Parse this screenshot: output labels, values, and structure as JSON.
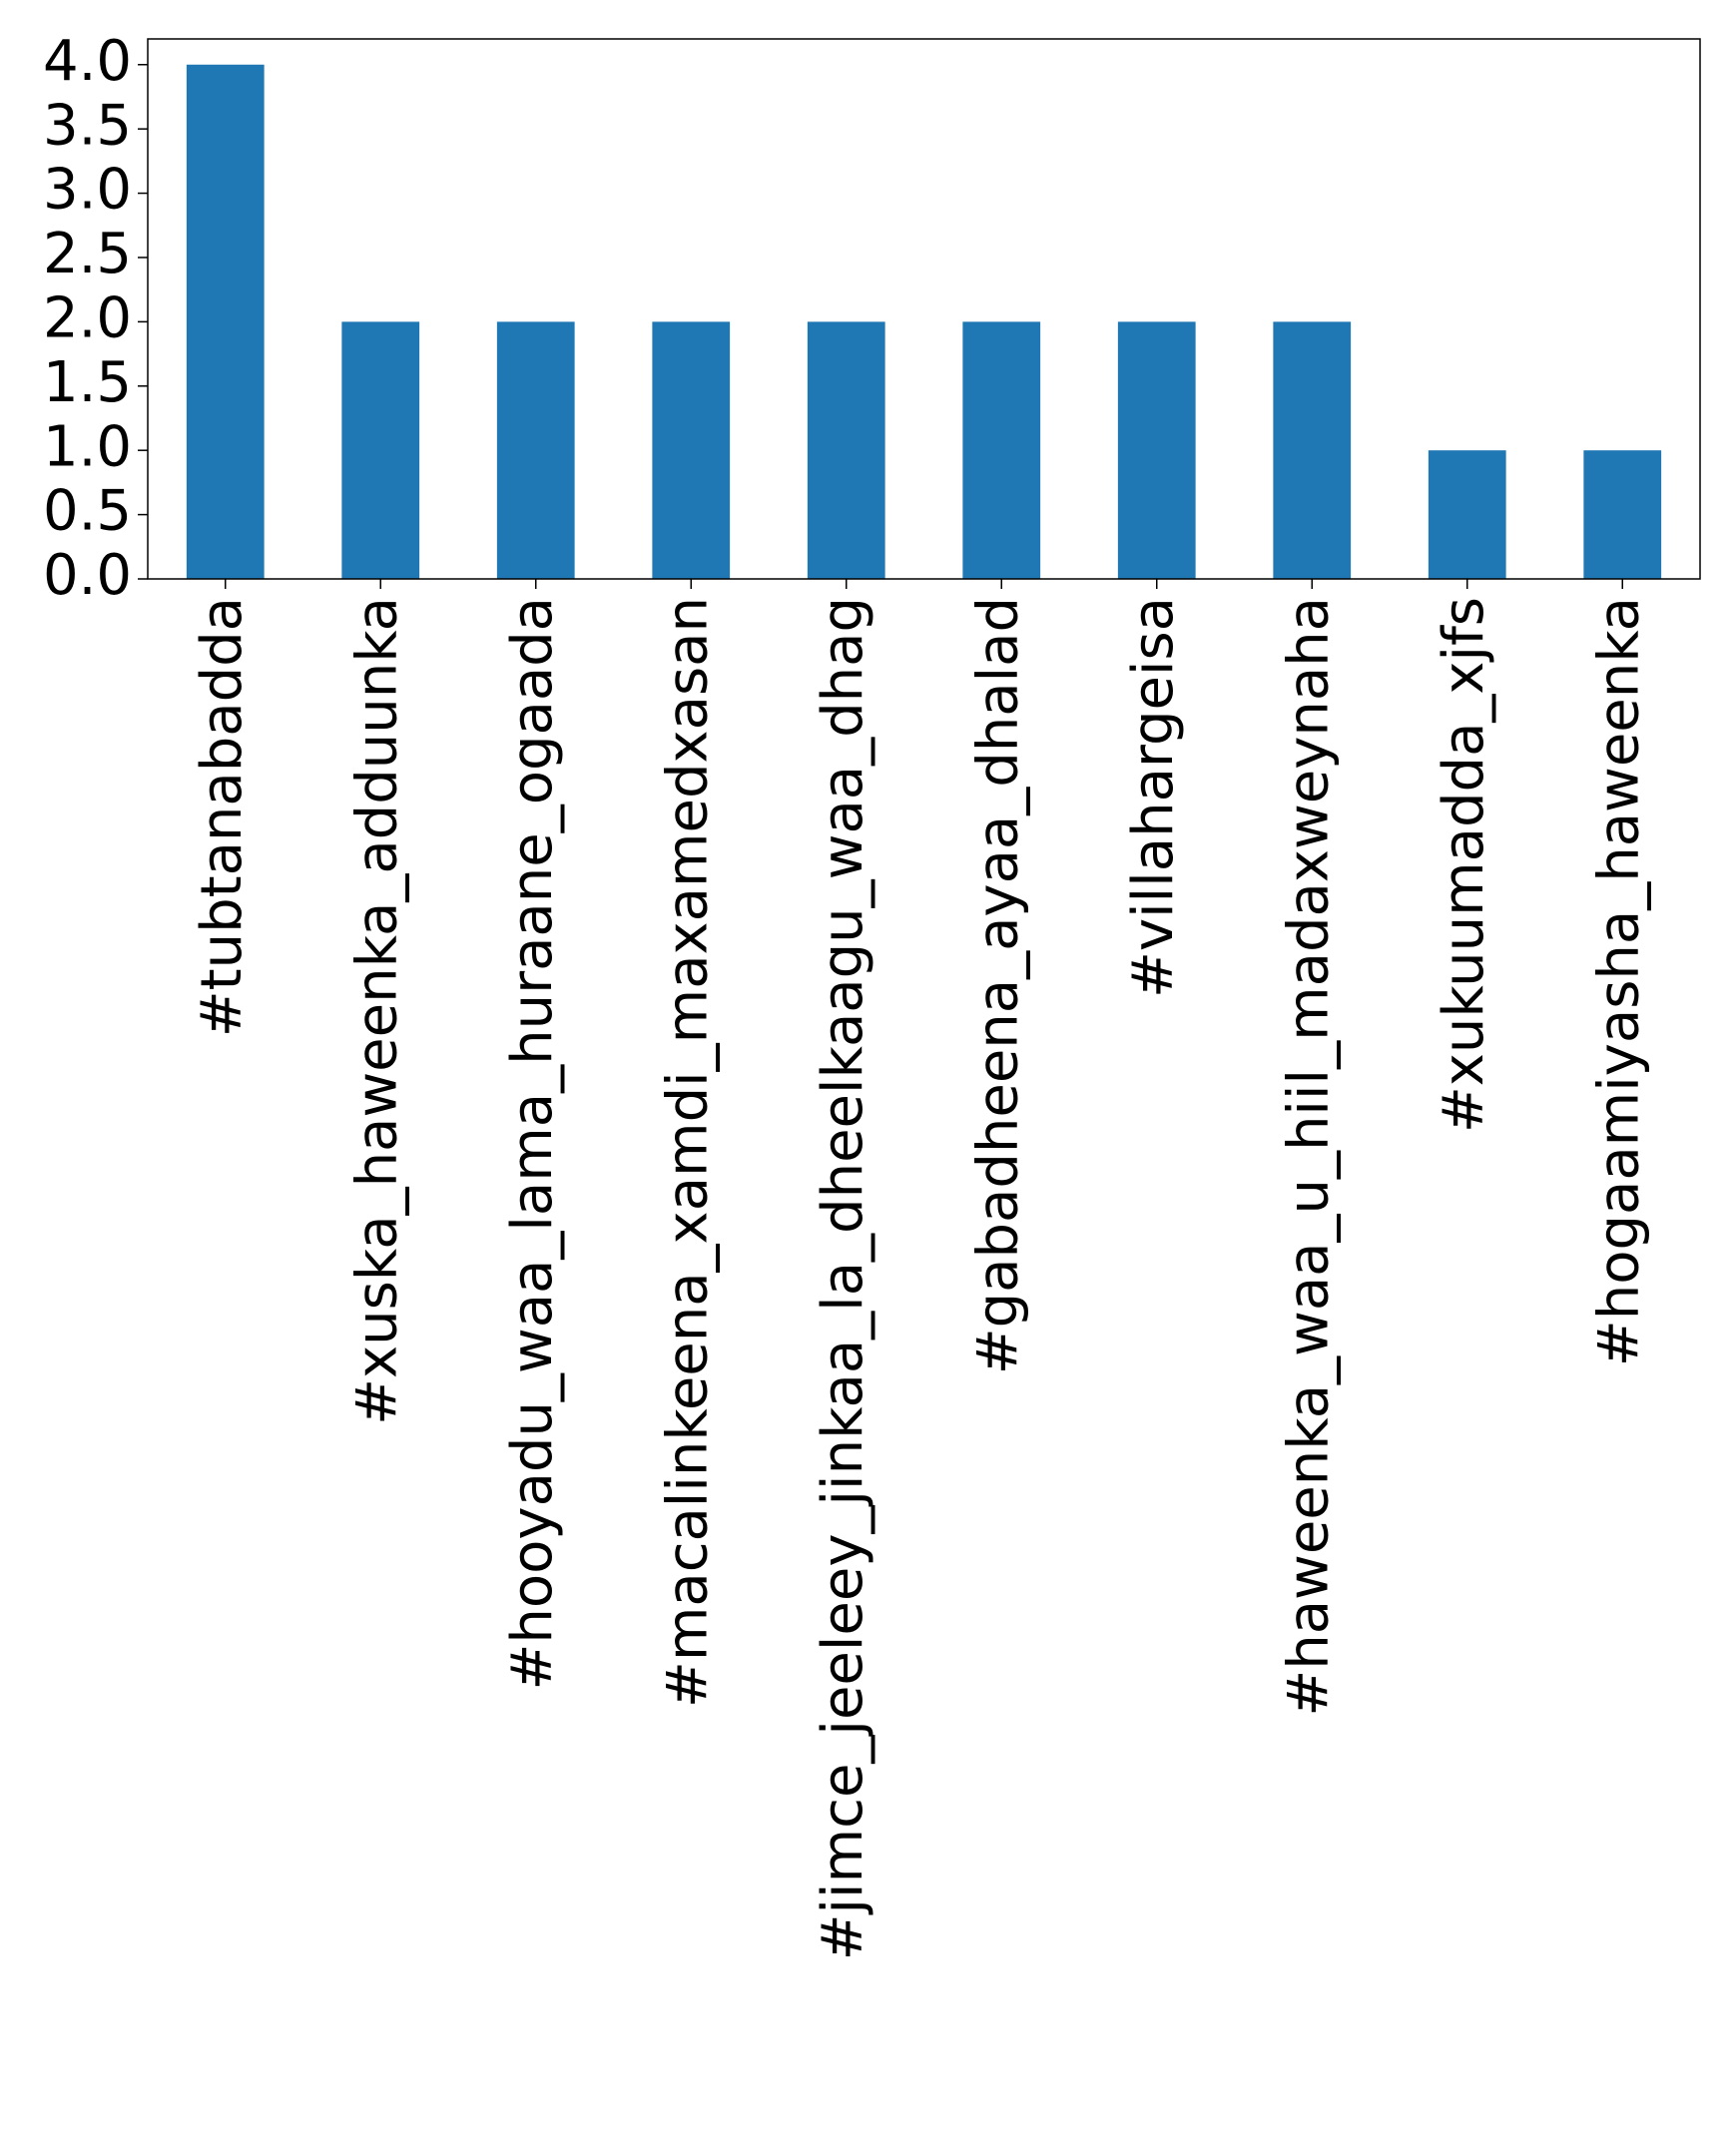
{
  "chart_data": {
    "type": "bar",
    "title": "",
    "xlabel": "",
    "ylabel": "",
    "categories": [
      "#tubtanabadda",
      "#xuska_haweenka_adduunka",
      "#hooyadu_waa_lama_huraane_ogaada",
      "#macalinkeena_xamdi_maxamedxasan",
      "#jimce_jeeleey_jinkaa_la_dheelkaagu_waa_dhag",
      "#gabadheena_ayaa_dhalad",
      "#villahargeisa",
      "#haweenka_waa_u_hiil_madaxweynaha",
      "#xukuumadda_xjfs",
      "#hogaamiyasha_haweenka"
    ],
    "values": [
      4,
      2,
      2,
      2,
      2,
      2,
      2,
      2,
      1,
      1
    ],
    "ylim": [
      0,
      4.2
    ],
    "yticks": [
      "0.0",
      "0.5",
      "1.0",
      "1.5",
      "2.0",
      "2.5",
      "3.0",
      "3.5",
      "4.0"
    ],
    "bar_color": "#1f77b4",
    "grid": false,
    "legend": "none"
  }
}
